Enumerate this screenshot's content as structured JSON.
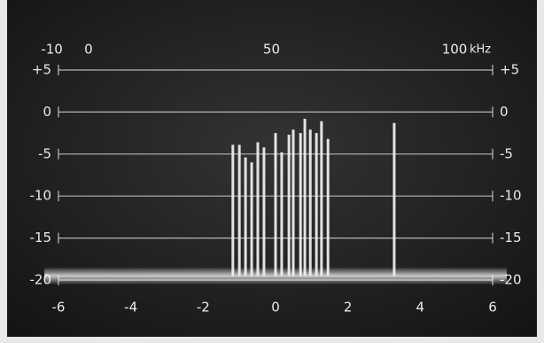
{
  "chart_data": {
    "type": "spectrum",
    "x": [
      -1.18,
      -1.0,
      -0.83,
      -0.66,
      -0.49,
      -0.32,
      0,
      0.17,
      0.37,
      0.49,
      0.69,
      0.81,
      0.96,
      1.13,
      1.27,
      1.45,
      3.28
    ],
    "values": [
      -3.9,
      -3.9,
      -5.4,
      -6,
      -3.6,
      -4.2,
      -2.5,
      -4.8,
      -2.7,
      -2.1,
      -2.5,
      -0.8,
      -2.1,
      -2.5,
      -1.1,
      -3.2,
      -1.3
    ],
    "noise_floor": -19.5,
    "color": "#f2f2f2",
    "xlim": [
      -6,
      6
    ],
    "xticks": [
      -6,
      -4,
      -2,
      0,
      2,
      4,
      6
    ],
    "x2lim": [
      -8.2,
      110.4
    ],
    "x2ticks": [
      -10,
      0,
      50,
      100
    ],
    "x2_unit": "kHz",
    "ylim": [
      -22,
      7
    ],
    "yticks": [
      {
        "value": 5,
        "label": "+5"
      },
      0,
      -5,
      -10,
      -15,
      -20
    ],
    "grid": true
  }
}
